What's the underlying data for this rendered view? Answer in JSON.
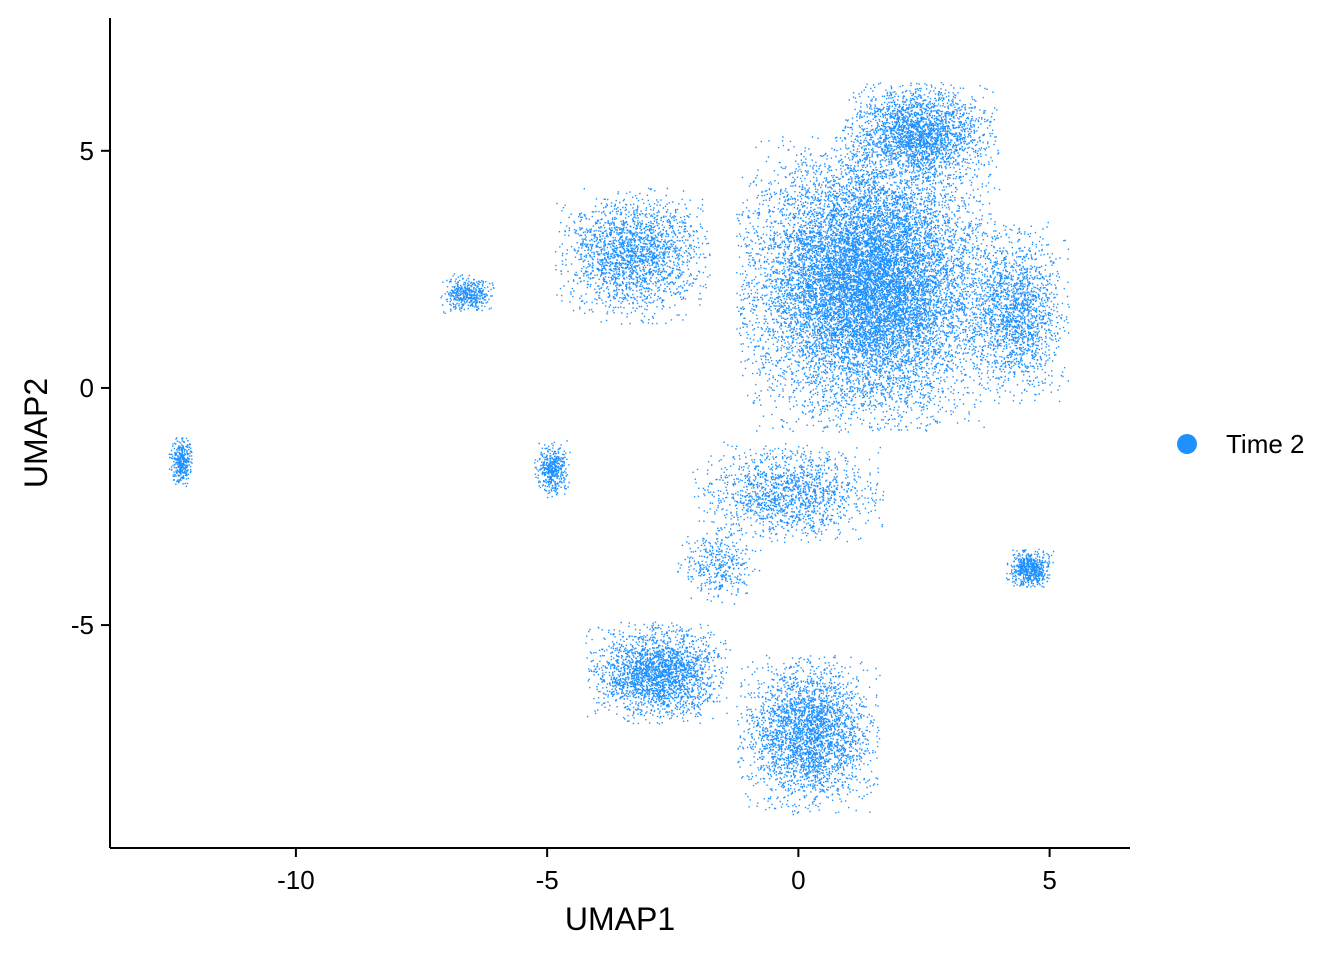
{
  "chart_data": {
    "type": "scatter",
    "title": "",
    "xlabel": "UMAP1",
    "ylabel": "UMAP2",
    "xlim": [
      -13.7,
      6.6
    ],
    "ylim": [
      -9.7,
      7.8
    ],
    "x_ticks": [
      -10,
      -5,
      0,
      5
    ],
    "y_ticks": [
      -5,
      0,
      5
    ],
    "x_tick_labels": [
      "-10",
      "-5",
      "0",
      "5"
    ],
    "y_tick_labels": [
      "-5",
      "0",
      "5"
    ],
    "grid": false,
    "legend_position": "right",
    "series": [
      {
        "name": "Time 2",
        "color": "#1E90FF",
        "point_count": 28000,
        "regions": [
          {
            "label": "main-mass",
            "center": [
              1.4,
              2.2
            ],
            "spread": [
              2.2,
              2.6
            ],
            "weight": 0.44
          },
          {
            "label": "main-top",
            "center": [
              2.4,
              5.4
            ],
            "spread": [
              1.3,
              0.9
            ],
            "weight": 0.08
          },
          {
            "label": "main-right",
            "center": [
              4.3,
              1.6
            ],
            "spread": [
              0.9,
              1.6
            ],
            "weight": 0.06
          },
          {
            "label": "upper-left-arm",
            "center": [
              -3.3,
              2.8
            ],
            "spread": [
              1.3,
              1.2
            ],
            "weight": 0.07
          },
          {
            "label": "central-lower",
            "center": [
              -0.2,
              -2.2
            ],
            "spread": [
              1.6,
              0.9
            ],
            "weight": 0.05
          },
          {
            "label": "left-lower-lobe",
            "center": [
              -2.8,
              -6.0
            ],
            "spread": [
              1.2,
              0.9
            ],
            "weight": 0.08
          },
          {
            "label": "right-lower-lobe",
            "center": [
              0.2,
              -7.3
            ],
            "spread": [
              1.2,
              1.4
            ],
            "weight": 0.1
          },
          {
            "label": "left-small-arm",
            "center": [
              -6.6,
              2.0
            ],
            "spread": [
              0.45,
              0.35
            ],
            "weight": 0.015
          },
          {
            "label": "left-middle-strand",
            "center": [
              -4.9,
              -1.7
            ],
            "spread": [
              0.3,
              0.5
            ],
            "weight": 0.015
          },
          {
            "label": "right-island",
            "center": [
              4.6,
              -3.8
            ],
            "spread": [
              0.4,
              0.35
            ],
            "weight": 0.02
          },
          {
            "label": "far-left-island",
            "center": [
              -12.3,
              -1.55
            ],
            "spread": [
              0.2,
              0.45
            ],
            "weight": 0.012
          },
          {
            "label": "bridge",
            "center": [
              -1.6,
              -3.7
            ],
            "spread": [
              0.7,
              0.7
            ],
            "weight": 0.013
          }
        ]
      }
    ]
  }
}
